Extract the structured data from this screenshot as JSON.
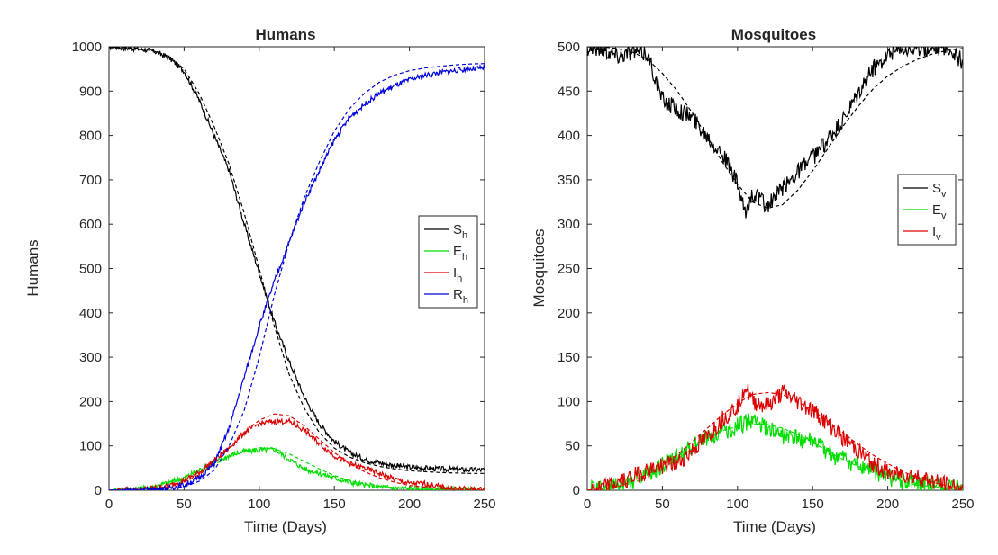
{
  "chart_data": [
    {
      "type": "line",
      "title": "Humans",
      "xlabel": "Time (Days)",
      "ylabel": "Humans",
      "xlim": [
        0,
        250
      ],
      "ylim": [
        0,
        1000
      ],
      "xticks": [
        "0",
        "50",
        "100",
        "150",
        "200",
        "250"
      ],
      "yticks": [
        "0",
        "100",
        "200",
        "300",
        "400",
        "500",
        "600",
        "700",
        "800",
        "900",
        "1000"
      ],
      "grid": false,
      "legend_position": "right",
      "series": [
        {
          "name": "S",
          "sub": "h",
          "color": "#000000",
          "x": [
            0,
            20,
            30,
            40,
            50,
            60,
            70,
            80,
            90,
            100,
            110,
            120,
            130,
            140,
            150,
            160,
            170,
            180,
            190,
            200,
            210,
            220,
            230,
            240,
            250
          ],
          "stochastic": [
            1000,
            995,
            990,
            975,
            945,
            880,
            800,
            720,
            600,
            490,
            380,
            290,
            210,
            150,
            110,
            85,
            70,
            62,
            56,
            52,
            50,
            48,
            47,
            46,
            46
          ],
          "deterministic": [
            1000,
            996,
            990,
            978,
            950,
            895,
            820,
            735,
            625,
            500,
            370,
            260,
            185,
            130,
            95,
            75,
            62,
            54,
            48,
            44,
            42,
            40,
            39,
            38,
            38
          ]
        },
        {
          "name": "E",
          "sub": "h",
          "color": "#00dd00",
          "x": [
            0,
            20,
            30,
            40,
            50,
            60,
            70,
            80,
            90,
            100,
            110,
            120,
            130,
            140,
            150,
            160,
            170,
            180,
            190,
            200,
            210,
            220,
            230,
            240,
            250
          ],
          "stochastic": [
            0,
            3,
            8,
            18,
            28,
            45,
            62,
            78,
            88,
            90,
            92,
            70,
            48,
            38,
            28,
            18,
            12,
            8,
            5,
            4,
            3,
            2,
            1,
            1,
            0
          ],
          "deterministic": [
            0,
            3,
            8,
            15,
            25,
            40,
            58,
            75,
            88,
            96,
            94,
            82,
            65,
            48,
            33,
            22,
            14,
            9,
            6,
            4,
            2,
            1,
            1,
            0,
            0
          ]
        },
        {
          "name": "I",
          "sub": "h",
          "color": "#dd0000",
          "x": [
            0,
            20,
            30,
            40,
            50,
            60,
            70,
            80,
            90,
            100,
            110,
            120,
            130,
            140,
            150,
            160,
            170,
            180,
            190,
            200,
            210,
            220,
            230,
            240,
            250
          ],
          "stochastic": [
            0,
            2,
            5,
            10,
            22,
            40,
            68,
            95,
            130,
            150,
            155,
            155,
            135,
            105,
            78,
            60,
            50,
            38,
            25,
            15,
            15,
            8,
            4,
            2,
            1
          ],
          "deterministic": [
            0,
            2,
            4,
            8,
            18,
            35,
            60,
            95,
            130,
            158,
            172,
            168,
            145,
            115,
            85,
            60,
            42,
            28,
            18,
            11,
            7,
            4,
            2,
            1,
            0
          ]
        },
        {
          "name": "R",
          "sub": "h",
          "color": "#0000dd",
          "x": [
            0,
            20,
            30,
            40,
            50,
            60,
            70,
            80,
            90,
            100,
            110,
            120,
            130,
            140,
            150,
            160,
            170,
            180,
            190,
            200,
            210,
            220,
            230,
            240,
            250
          ],
          "stochastic": [
            0,
            1,
            2,
            5,
            12,
            28,
            60,
            140,
            255,
            370,
            470,
            560,
            650,
            720,
            790,
            840,
            870,
            895,
            912,
            925,
            935,
            942,
            946,
            950,
            952
          ],
          "deterministic": [
            0,
            1,
            2,
            4,
            8,
            20,
            45,
            100,
            180,
            300,
            440,
            560,
            660,
            740,
            810,
            860,
            895,
            920,
            936,
            946,
            952,
            956,
            959,
            961,
            962
          ]
        }
      ]
    },
    {
      "type": "line",
      "title": "Mosquitoes",
      "xlabel": "Time (Days)",
      "ylabel": "Mosquitoes",
      "xlim": [
        0,
        250
      ],
      "ylim": [
        0,
        500
      ],
      "xticks": [
        "0",
        "50",
        "100",
        "150",
        "200",
        "250"
      ],
      "yticks": [
        "0",
        "50",
        "100",
        "150",
        "200",
        "250",
        "300",
        "350",
        "400",
        "450",
        "500"
      ],
      "grid": false,
      "legend_position": "right",
      "series": [
        {
          "name": "S",
          "sub": "v",
          "color": "#000000",
          "x": [
            0,
            10,
            20,
            30,
            40,
            50,
            60,
            70,
            80,
            90,
            100,
            105,
            110,
            120,
            130,
            140,
            150,
            160,
            170,
            180,
            190,
            200,
            210,
            220,
            230,
            240,
            250
          ],
          "stochastic": [
            500,
            498,
            490,
            495,
            492,
            440,
            430,
            420,
            400,
            380,
            345,
            310,
            335,
            320,
            340,
            360,
            375,
            395,
            415,
            445,
            475,
            492,
            500,
            498,
            500,
            500,
            482
          ],
          "deterministic": [
            500,
            500,
            498,
            494,
            486,
            470,
            450,
            425,
            398,
            370,
            345,
            335,
            325,
            318,
            322,
            338,
            360,
            385,
            410,
            432,
            452,
            467,
            478,
            486,
            492,
            496,
            498
          ]
        },
        {
          "name": "E",
          "sub": "v",
          "color": "#00dd00",
          "x": [
            0,
            10,
            20,
            30,
            40,
            50,
            60,
            70,
            80,
            90,
            100,
            110,
            120,
            130,
            140,
            150,
            160,
            170,
            180,
            190,
            200,
            210,
            220,
            230,
            240,
            250
          ],
          "stochastic": [
            0,
            2,
            5,
            10,
            18,
            28,
            38,
            50,
            60,
            65,
            72,
            80,
            68,
            62,
            58,
            55,
            42,
            35,
            28,
            22,
            15,
            10,
            8,
            5,
            3,
            1
          ],
          "deterministic": [
            0,
            1,
            3,
            8,
            15,
            24,
            35,
            47,
            58,
            67,
            72,
            75,
            74,
            70,
            63,
            54,
            44,
            35,
            27,
            20,
            14,
            9,
            6,
            4,
            2,
            1
          ]
        },
        {
          "name": "I",
          "sub": "v",
          "color": "#dd0000",
          "x": [
            0,
            10,
            20,
            30,
            40,
            50,
            60,
            70,
            80,
            90,
            100,
            105,
            110,
            120,
            130,
            140,
            150,
            160,
            170,
            180,
            190,
            200,
            210,
            220,
            230,
            240,
            250
          ],
          "stochastic": [
            0,
            2,
            8,
            15,
            22,
            28,
            30,
            45,
            60,
            80,
            95,
            118,
            100,
            95,
            110,
            100,
            90,
            75,
            60,
            45,
            30,
            20,
            18,
            15,
            10,
            5,
            2
          ],
          "deterministic": [
            0,
            1,
            4,
            10,
            18,
            28,
            40,
            55,
            70,
            85,
            98,
            103,
            108,
            110,
            108,
            100,
            90,
            78,
            65,
            52,
            40,
            30,
            21,
            14,
            9,
            5,
            3
          ]
        }
      ]
    }
  ]
}
